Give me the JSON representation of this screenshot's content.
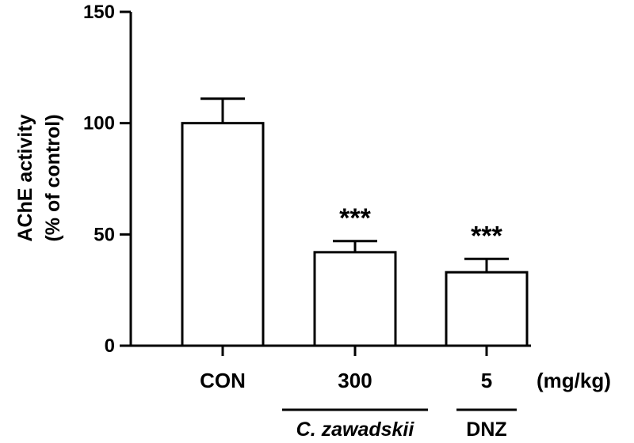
{
  "chart_data": {
    "type": "bar",
    "title": "",
    "ylabel_lines": [
      "AChE activity",
      "(% of control)"
    ],
    "ylim": [
      0,
      150
    ],
    "yticks": [
      0,
      50,
      100,
      150
    ],
    "categories": [
      "CON",
      "300",
      "5"
    ],
    "values": [
      100,
      42,
      33
    ],
    "errors": [
      11,
      5,
      6
    ],
    "significance": [
      "",
      "***",
      "***"
    ],
    "unit_label": "(mg/kg)",
    "groups": [
      {
        "label": "C. zawadskii",
        "italic": true,
        "category_indices": [
          1
        ]
      },
      {
        "label": "DNZ",
        "italic": false,
        "category_indices": [
          2
        ]
      }
    ],
    "bar_fill": "#ffffff",
    "bar_stroke": "#000000"
  }
}
